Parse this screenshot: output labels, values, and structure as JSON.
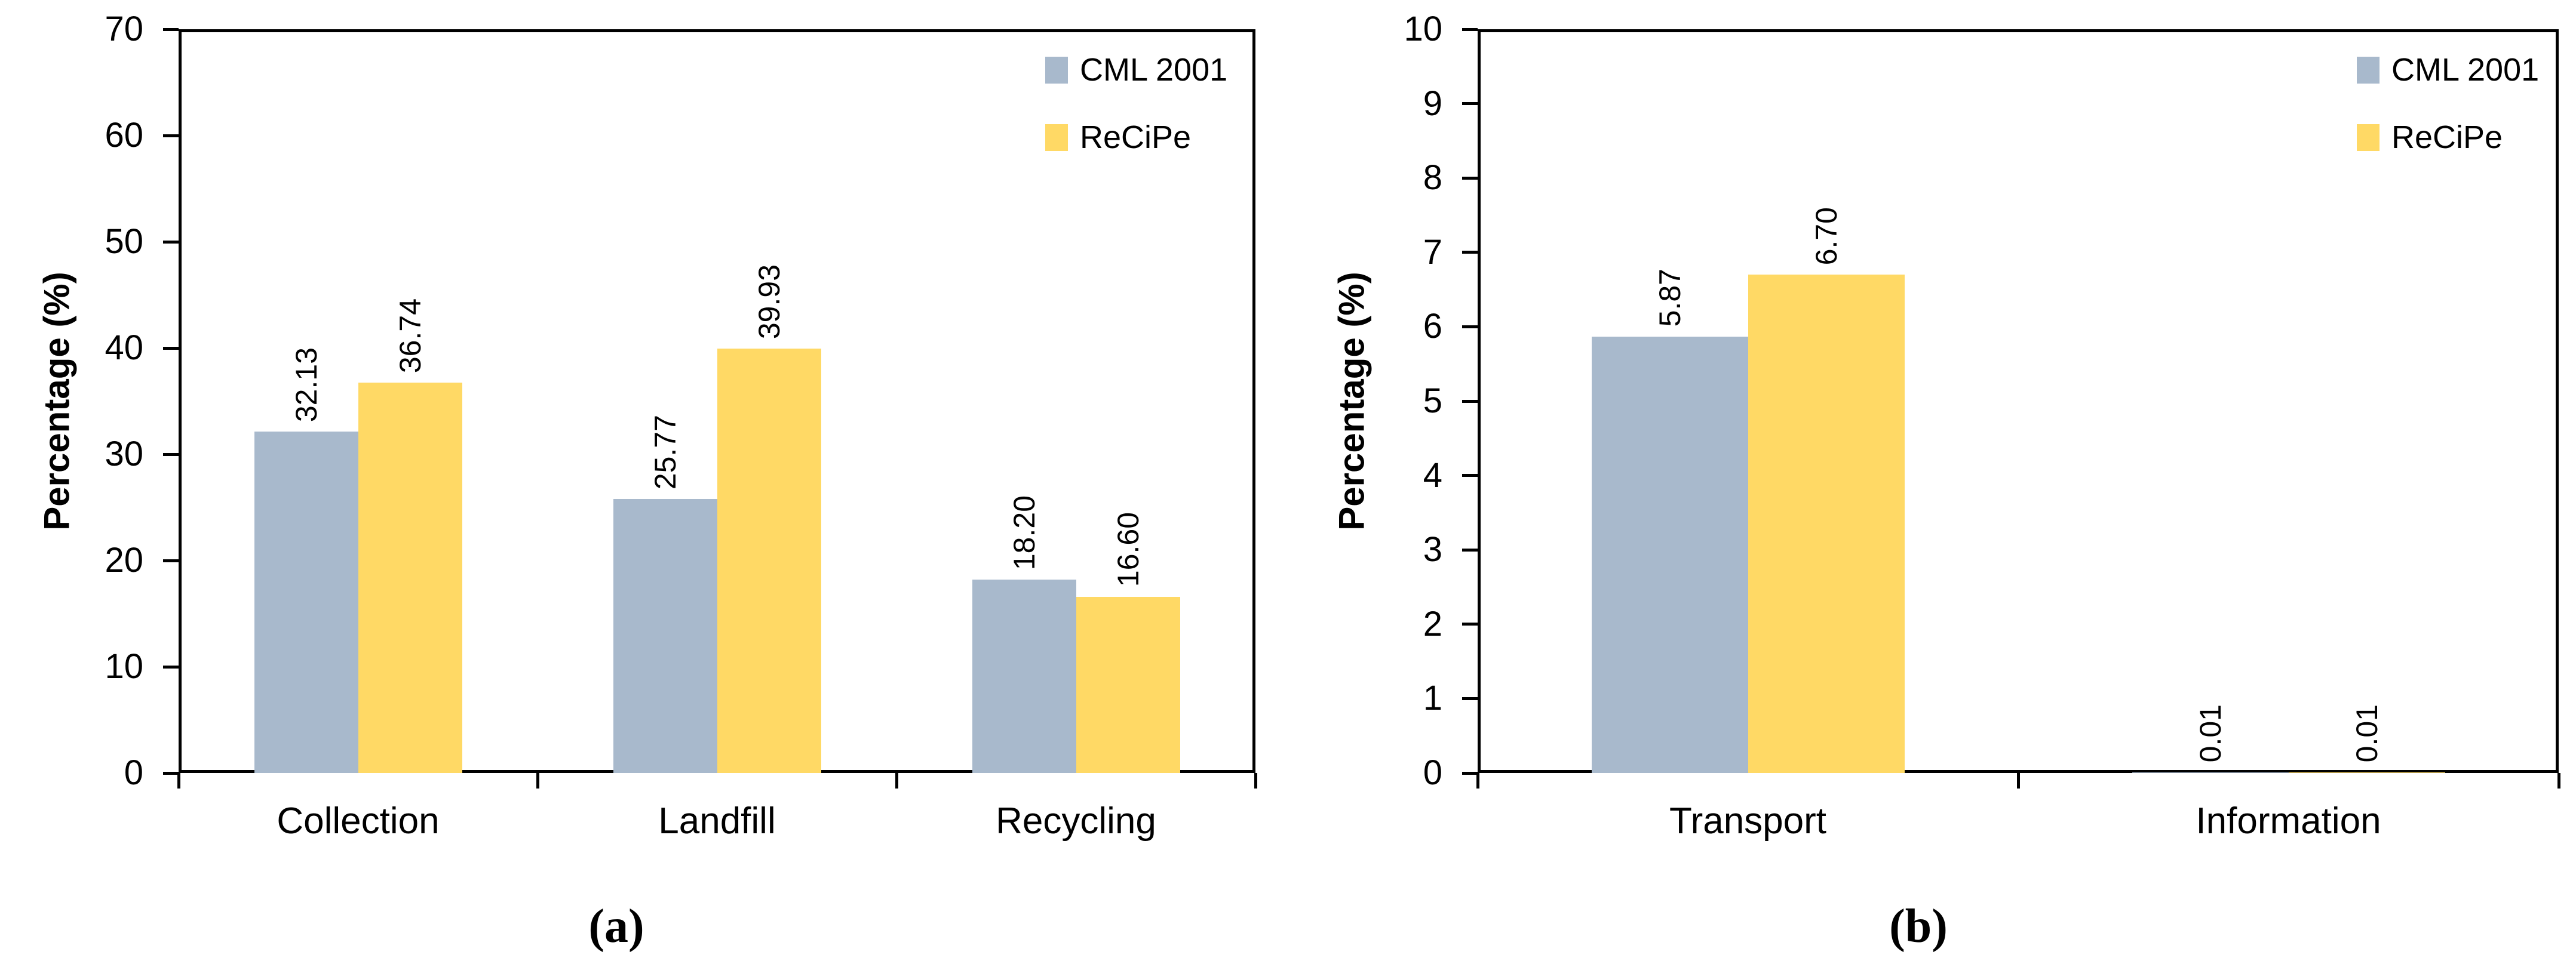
{
  "figure": {
    "background": "#ffffff",
    "axis_color": "#000000",
    "text_color": "#000000"
  },
  "chart_data": [
    {
      "id": "a",
      "type": "bar",
      "caption": "(a)",
      "ylabel": "Percentage (%)",
      "xlabel": "",
      "title": "",
      "ylim": [
        0,
        70
      ],
      "ytick_step": 10,
      "grid": false,
      "legend_position": "top-right-inside",
      "categories": [
        "Collection",
        "Landfill",
        "Recycling"
      ],
      "series": [
        {
          "name": "CML 2001",
          "color": "#a8b9cc",
          "values": [
            32.13,
            25.77,
            18.2
          ],
          "data_labels": [
            "32.13",
            "25.77",
            "18.20"
          ]
        },
        {
          "name": "ReCiPe",
          "color": "#ffd965",
          "values": [
            36.74,
            39.93,
            16.6
          ],
          "data_labels": [
            "36.74",
            "39.93",
            "16.60"
          ]
        }
      ]
    },
    {
      "id": "b",
      "type": "bar",
      "caption": "(b)",
      "ylabel": "Percentage (%)",
      "xlabel": "",
      "title": "",
      "ylim": [
        0,
        10
      ],
      "ytick_step": 1,
      "grid": false,
      "legend_position": "top-right-inside",
      "categories": [
        "Transport",
        "Information"
      ],
      "series": [
        {
          "name": "CML 2001",
          "color": "#a8b9cc",
          "values": [
            5.87,
            0.01
          ],
          "data_labels": [
            "5.87",
            "0.01"
          ]
        },
        {
          "name": "ReCiPe",
          "color": "#ffd965",
          "values": [
            6.7,
            0.01
          ],
          "data_labels": [
            "6.70",
            "0.01"
          ]
        }
      ]
    }
  ]
}
